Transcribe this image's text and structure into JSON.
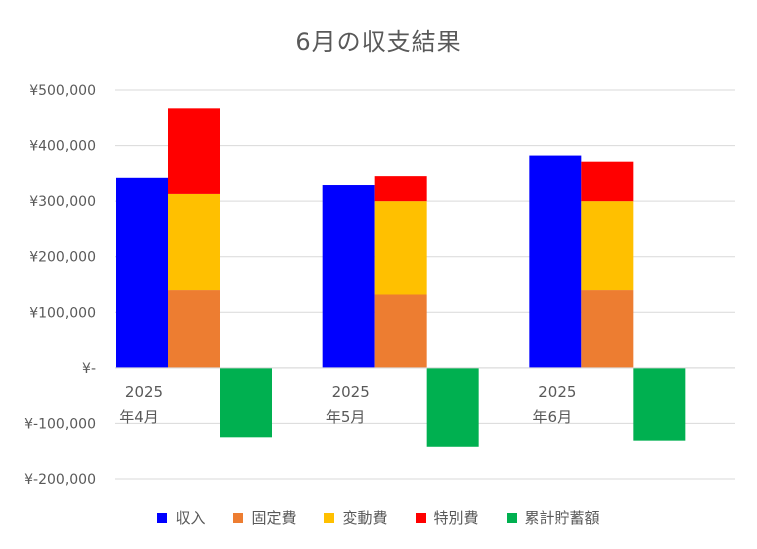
{
  "chart_data": {
    "type": "bar",
    "title": "6月の収支結果",
    "categories": [
      [
        "2025",
        "年4月"
      ],
      [
        "2025",
        "年5月"
      ],
      [
        "2025",
        "年6月"
      ]
    ],
    "ylim": [
      -200000,
      500000
    ],
    "yticks": [
      500000,
      400000,
      300000,
      200000,
      100000,
      0,
      -100000,
      -200000
    ],
    "ytick_labels": [
      "¥500,000",
      "¥400,000",
      "¥300,000",
      "¥200,000",
      "¥100,000",
      "¥-",
      "¥-100,000",
      "¥-200,000"
    ],
    "grid": true,
    "legend_position": "bottom",
    "series": [
      {
        "name": "収入",
        "stack": "income",
        "color": "#0000FF",
        "values": [
          342000,
          329000,
          382000
        ]
      },
      {
        "name": "固定費",
        "stack": "expense",
        "color": "#ED7D31",
        "values": [
          140000,
          132000,
          140000
        ]
      },
      {
        "name": "変動費",
        "stack": "expense",
        "color": "#FFC000",
        "values": [
          173000,
          168000,
          160000
        ]
      },
      {
        "name": "特別費",
        "stack": "expense",
        "color": "#FF0000",
        "values": [
          154000,
          45000,
          71000
        ]
      },
      {
        "name": "累計貯蓄額",
        "stack": "savings",
        "color": "#00B050",
        "values": [
          -125000,
          -142000,
          -131000
        ]
      }
    ]
  }
}
